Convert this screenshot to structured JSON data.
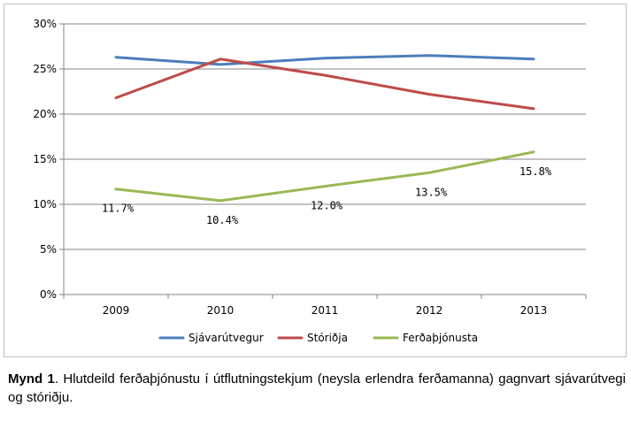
{
  "chart_data": {
    "type": "line",
    "title": "",
    "xlabel": "",
    "ylabel": "",
    "categories": [
      "2009",
      "2010",
      "2011",
      "2012",
      "2013"
    ],
    "ylim": [
      0,
      30
    ],
    "yticks": [
      0,
      5,
      10,
      15,
      20,
      25,
      30
    ],
    "ytick_labels": [
      "0%",
      "5%",
      "10%",
      "15%",
      "20%",
      "25%",
      "30%"
    ],
    "grid": "horizontal",
    "legend_position": "bottom",
    "series": [
      {
        "name": "Sjávarútvegur",
        "color": "#4a7ebb",
        "values": [
          26.3,
          25.5,
          26.2,
          26.5,
          26.1
        ]
      },
      {
        "name": "Stóriðja",
        "color": "#be4b48",
        "values": [
          21.8,
          26.1,
          24.3,
          22.2,
          20.6
        ]
      },
      {
        "name": "Ferðaþjónusta",
        "color": "#98b954",
        "values": [
          11.7,
          10.4,
          12.0,
          13.5,
          15.8
        ],
        "data_labels": [
          "11.7%",
          "10.4%",
          "12.0%",
          "13.5%",
          "15.8%"
        ]
      }
    ]
  },
  "caption": {
    "label": "Mynd 1",
    "text": ". Hlutdeild ferðaþjónustu í útflutningstekjum (neysla erlendra ferðamanna) gagnvart sjávarútvegi og stóriðju."
  }
}
